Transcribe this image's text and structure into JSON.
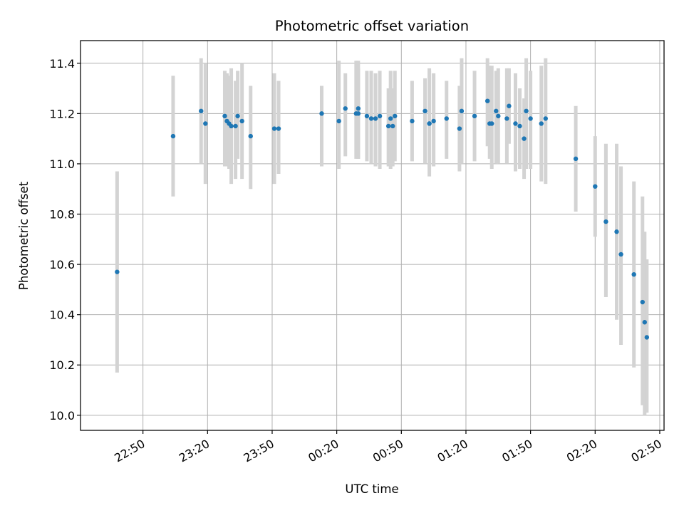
{
  "chart_data": {
    "type": "scatter",
    "title": "Photometric offset variation",
    "xlabel": "UTC time",
    "ylabel": "Photometric offset",
    "grid": true,
    "x_axis_kind": "time",
    "xlim": [
      "22:21",
      "02:52"
    ],
    "ylim": [
      9.94,
      11.49
    ],
    "x_ticks": [
      "22:50",
      "23:20",
      "23:50",
      "00:20",
      "00:50",
      "01:20",
      "01:50",
      "02:20",
      "02:50"
    ],
    "y_ticks": [
      "10.0",
      "10.2",
      "10.4",
      "10.6",
      "10.8",
      "11.0",
      "11.2",
      "11.4"
    ],
    "colors": {
      "point": "#1f77b4",
      "error_bar": "#d3d3d3",
      "grid": "#b0b0b0"
    },
    "series": [
      {
        "x": [
          "22:38",
          "23:04",
          "23:17",
          "23:19",
          "23:28",
          "23:29",
          "23:30",
          "23:31",
          "23:33",
          "23:34",
          "23:36",
          "23:40",
          "23:51",
          "23:53",
          "00:13",
          "00:21",
          "00:24",
          "00:29",
          "00:30",
          "00:30",
          "00:34",
          "00:36",
          "00:38",
          "00:40",
          "00:44",
          "00:45",
          "00:46",
          "00:47",
          "00:55",
          "01:01",
          "01:03",
          "01:03",
          "01:05",
          "01:11",
          "01:17",
          "01:18",
          "01:24",
          "01:30",
          "01:31",
          "01:32",
          "01:34",
          "01:35",
          "01:39",
          "01:40",
          "01:43",
          "01:45",
          "01:47",
          "01:48",
          "01:50",
          "01:55",
          "01:57",
          "02:11",
          "02:20",
          "02:25",
          "02:30",
          "02:32",
          "02:38",
          "02:42",
          "02:43",
          "02:44"
        ],
        "y": [
          10.57,
          11.11,
          11.21,
          11.16,
          11.19,
          11.17,
          11.16,
          11.15,
          11.15,
          11.19,
          11.17,
          11.11,
          11.14,
          11.14,
          11.2,
          11.17,
          11.22,
          11.2,
          11.2,
          11.22,
          11.19,
          11.18,
          11.18,
          11.19,
          11.15,
          11.18,
          11.15,
          11.19,
          11.17,
          11.21,
          11.16,
          11.16,
          11.17,
          11.18,
          11.14,
          11.21,
          11.19,
          11.25,
          11.16,
          11.16,
          11.21,
          11.19,
          11.18,
          11.23,
          11.16,
          11.15,
          11.1,
          11.21,
          11.18,
          11.16,
          11.18,
          11.02,
          10.91,
          10.77,
          10.73,
          10.64,
          10.56,
          10.45,
          10.37,
          10.31
        ],
        "err_low": [
          10.17,
          10.87,
          11.0,
          10.92,
          10.99,
          10.99,
          10.98,
          10.92,
          10.94,
          11.02,
          10.94,
          10.9,
          10.92,
          10.96,
          10.99,
          10.98,
          11.03,
          11.02,
          11.02,
          11.02,
          11.01,
          11.0,
          10.99,
          10.98,
          10.99,
          10.98,
          10.99,
          11.01,
          11.01,
          11.0,
          10.95,
          10.99,
          10.99,
          11.02,
          10.97,
          11.0,
          11.01,
          11.07,
          11.02,
          10.98,
          11.0,
          11.0,
          11.0,
          11.08,
          10.97,
          10.98,
          10.94,
          10.98,
          10.98,
          10.93,
          10.92,
          10.81,
          10.71,
          10.47,
          10.38,
          10.28,
          10.19,
          10.04,
          10.0,
          10.01
        ],
        "err_high": [
          10.97,
          11.35,
          11.42,
          11.4,
          11.37,
          11.36,
          11.35,
          11.38,
          11.33,
          11.37,
          11.4,
          11.31,
          11.36,
          11.33,
          11.31,
          11.41,
          11.36,
          11.41,
          11.41,
          11.38,
          11.37,
          11.37,
          11.36,
          11.37,
          11.3,
          11.37,
          11.3,
          11.37,
          11.33,
          11.34,
          11.37,
          11.38,
          11.36,
          11.33,
          11.31,
          11.42,
          11.37,
          11.42,
          11.39,
          11.39,
          11.37,
          11.38,
          11.38,
          11.38,
          11.36,
          11.3,
          11.26,
          11.42,
          11.37,
          11.39,
          11.42,
          11.23,
          11.11,
          11.08,
          11.08,
          10.99,
          10.93,
          10.87,
          10.73,
          10.62
        ]
      }
    ]
  }
}
